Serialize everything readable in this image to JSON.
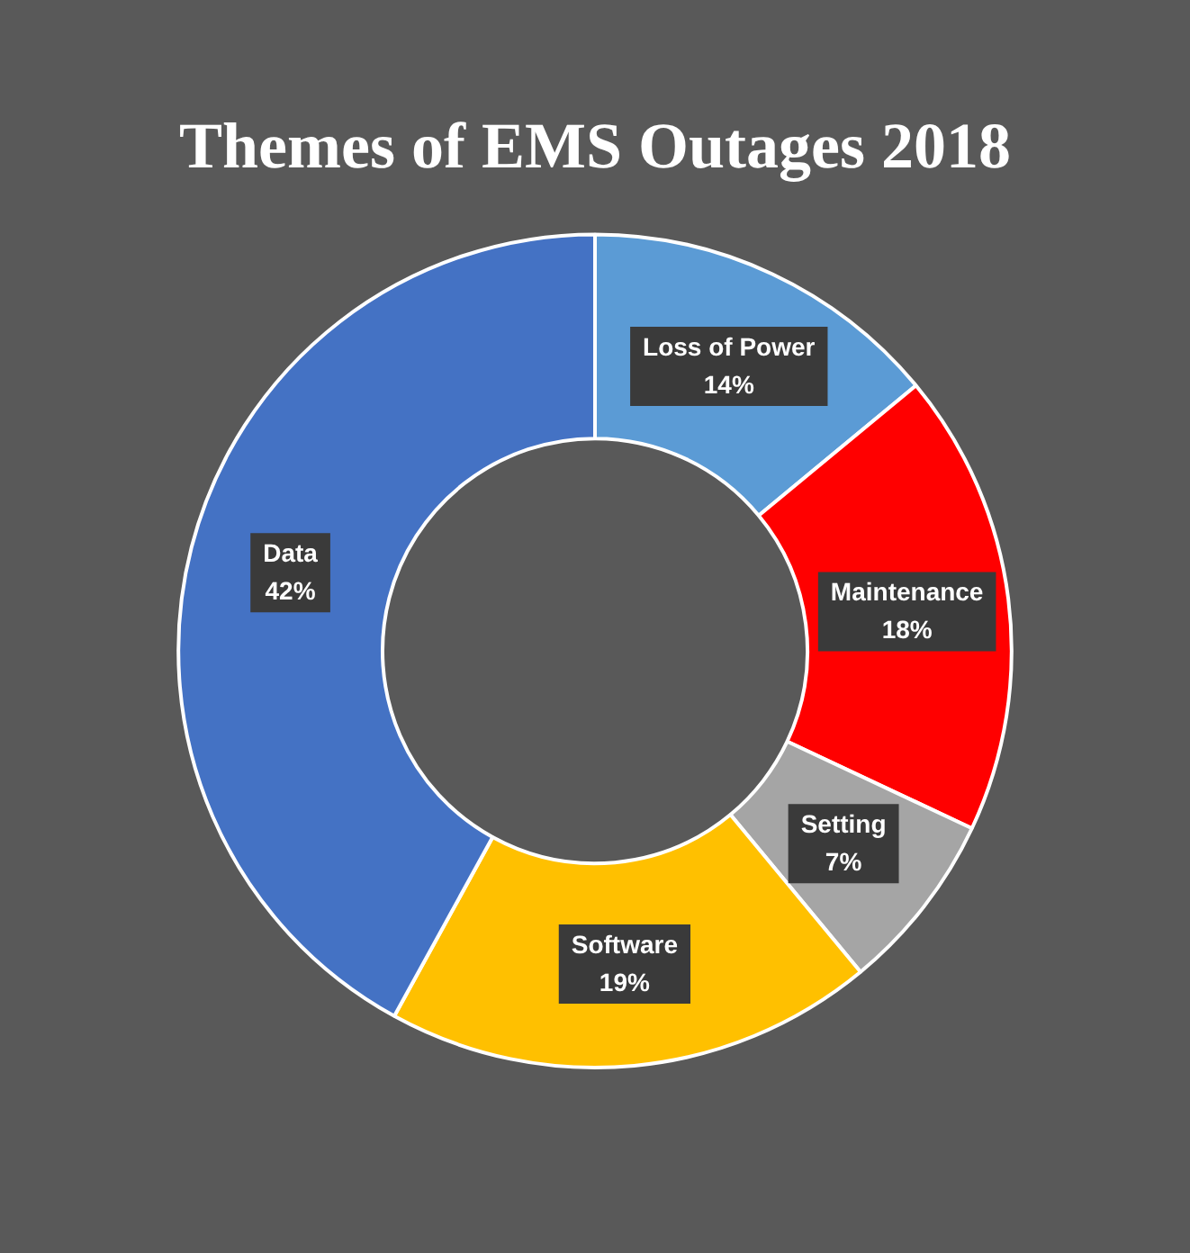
{
  "chart_data": {
    "type": "donut",
    "title": "Themes of EMS Outages 2018",
    "categories": [
      "Loss of Power",
      "Maintenance",
      "Setting",
      "Software",
      "Data"
    ],
    "values": [
      14,
      18,
      7,
      19,
      42
    ],
    "colors": [
      "#5b9bd5",
      "#ff0000",
      "#a5a5a5",
      "#ffc000",
      "#4472c4"
    ],
    "value_labels": [
      "14%",
      "18%",
      "7%",
      "19%",
      "42%"
    ],
    "legend": false
  }
}
